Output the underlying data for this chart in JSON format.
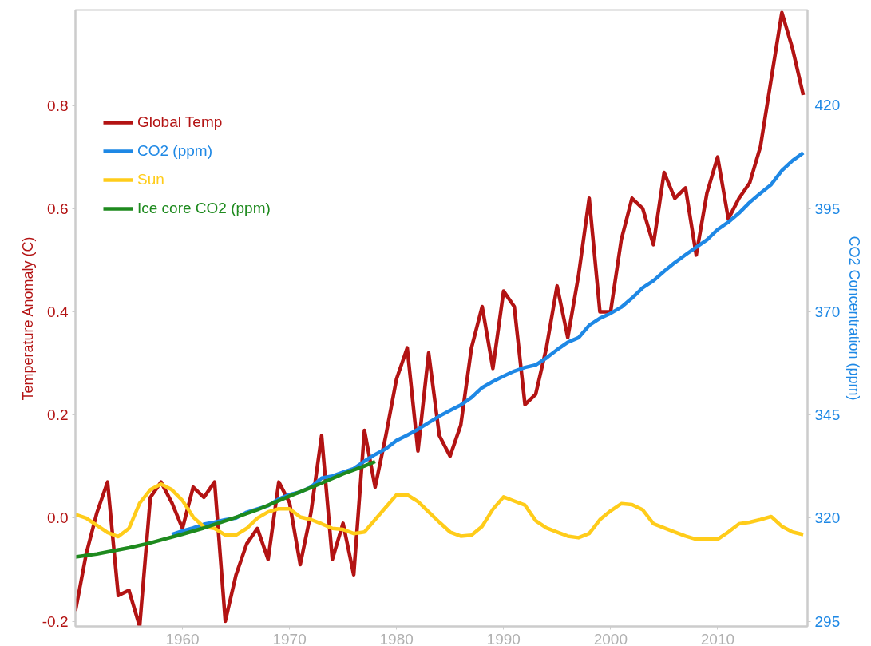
{
  "chart_data": {
    "type": "line",
    "ylabel": "Temperature Anomaly (C)",
    "y2label": "CO2 Concentration (ppm)",
    "xlim": [
      1950,
      2018.4
    ],
    "xticks": [
      1960,
      1970,
      1980,
      1990,
      2000,
      2010
    ],
    "ylim": [
      -0.21,
      0.985
    ],
    "yticks": [
      {
        "value": -0.2,
        "label": "-0.2"
      },
      {
        "value": 0,
        "label": "0.0"
      },
      {
        "value": 0.2,
        "label": "0.2"
      },
      {
        "value": 0.4,
        "label": "0.4"
      },
      {
        "value": 0.6,
        "label": "0.6"
      },
      {
        "value": 0.8,
        "label": "0.8"
      }
    ],
    "y2lim": [
      293.75,
      443.1
    ],
    "y2ticks": [
      295,
      320,
      345,
      370,
      395,
      420
    ],
    "grid": false,
    "legend": "top left",
    "marker": "none",
    "line_style": "solid",
    "series": [
      {
        "name": "Global Temp",
        "color": "#b31313",
        "x": [
          1950,
          1951,
          1952,
          1953,
          1954,
          1955,
          1956,
          1957,
          1958,
          1959,
          1960,
          1961,
          1962,
          1963,
          1964,
          1965,
          1966,
          1967,
          1968,
          1969,
          1970,
          1971,
          1972,
          1973,
          1974,
          1975,
          1976,
          1977,
          1978,
          1979,
          1980,
          1981,
          1982,
          1983,
          1984,
          1985,
          1986,
          1987,
          1988,
          1989,
          1990,
          1991,
          1992,
          1993,
          1994,
          1995,
          1996,
          1997,
          1998,
          1999,
          2000,
          2001,
          2002,
          2003,
          2004,
          2005,
          2006,
          2007,
          2008,
          2009,
          2010,
          2011,
          2012,
          2013,
          2014,
          2015,
          2016,
          2017,
          2018
        ],
        "values": [
          -0.18,
          -0.07,
          0.01,
          0.07,
          -0.15,
          -0.14,
          -0.21,
          0.04,
          0.07,
          0.03,
          -0.02,
          0.06,
          0.04,
          0.07,
          -0.2,
          -0.11,
          -0.05,
          -0.02,
          -0.08,
          0.07,
          0.03,
          -0.09,
          0.01,
          0.16,
          -0.08,
          -0.01,
          -0.11,
          0.17,
          0.06,
          0.16,
          0.27,
          0.33,
          0.13,
          0.32,
          0.16,
          0.12,
          0.18,
          0.33,
          0.41,
          0.29,
          0.44,
          0.41,
          0.22,
          0.24,
          0.33,
          0.45,
          0.35,
          0.47,
          0.62,
          0.4,
          0.4,
          0.54,
          0.62,
          0.6,
          0.53,
          0.67,
          0.62,
          0.64,
          0.51,
          0.63,
          0.7,
          0.58,
          0.62,
          0.65,
          0.72,
          0.85,
          0.98,
          0.91,
          0.82
        ]
      },
      {
        "name": "CO2 (ppm)",
        "color": "#1e88e5",
        "axis": "y2",
        "x": [
          1959,
          1960,
          1961,
          1962,
          1963,
          1964,
          1965,
          1966,
          1967,
          1968,
          1969,
          1970,
          1971,
          1972,
          1973,
          1974,
          1975,
          1976,
          1977,
          1978,
          1979,
          1980,
          1981,
          1982,
          1983,
          1984,
          1985,
          1986,
          1987,
          1988,
          1989,
          1990,
          1991,
          1992,
          1993,
          1994,
          1995,
          1996,
          1997,
          1998,
          1999,
          2000,
          2001,
          2002,
          2003,
          2004,
          2005,
          2006,
          2007,
          2008,
          2009,
          2010,
          2011,
          2012,
          2013,
          2014,
          2015,
          2016,
          2017,
          2018
        ],
        "values": [
          316.0,
          316.9,
          317.6,
          318.5,
          319.0,
          319.6,
          320.0,
          321.4,
          322.2,
          323.0,
          324.6,
          325.7,
          326.3,
          327.5,
          329.7,
          330.2,
          331.1,
          332.0,
          333.8,
          335.4,
          336.8,
          338.8,
          340.1,
          341.5,
          343.1,
          344.7,
          346.1,
          347.4,
          349.2,
          351.6,
          353.1,
          354.4,
          355.6,
          356.5,
          357.1,
          358.8,
          360.8,
          362.6,
          363.7,
          366.7,
          368.4,
          369.6,
          371.1,
          373.3,
          375.8,
          377.5,
          379.8,
          381.9,
          383.8,
          385.6,
          387.4,
          389.9,
          391.7,
          393.9,
          396.5,
          398.7,
          400.8,
          404.2,
          406.6,
          408.5
        ]
      },
      {
        "name": "Sun",
        "color": "#ffcc1a",
        "x": [
          1950,
          1951,
          1952,
          1953,
          1954,
          1955,
          1956,
          1957,
          1958,
          1959,
          1960,
          1961,
          1962,
          1963,
          1964,
          1965,
          1966,
          1967,
          1968,
          1969,
          1970,
          1971,
          1972,
          1973,
          1974,
          1975,
          1976,
          1977,
          1978,
          1979,
          1980,
          1981,
          1982,
          1983,
          1984,
          1985,
          1986,
          1987,
          1988,
          1989,
          1990,
          1991,
          1992,
          1993,
          1994,
          1995,
          1996,
          1997,
          1998,
          1999,
          2000,
          2001,
          2002,
          2003,
          2004,
          2005,
          2006,
          2007,
          2008,
          2009,
          2010,
          2011,
          2012,
          2013,
          2014,
          2015,
          2016,
          2017,
          2018
        ],
        "values": [
          0.007,
          0.0,
          -0.014,
          -0.028,
          -0.036,
          -0.02,
          0.029,
          0.055,
          0.066,
          0.055,
          0.034,
          0.002,
          -0.017,
          -0.02,
          -0.033,
          -0.033,
          -0.02,
          0.0,
          0.012,
          0.018,
          0.018,
          0.002,
          -0.003,
          -0.011,
          -0.02,
          -0.022,
          -0.03,
          -0.027,
          -0.003,
          0.021,
          0.045,
          0.045,
          0.032,
          0.012,
          -0.008,
          -0.027,
          -0.035,
          -0.033,
          -0.016,
          0.017,
          0.041,
          0.033,
          0.025,
          -0.005,
          -0.019,
          -0.027,
          -0.035,
          -0.038,
          -0.03,
          -0.003,
          0.014,
          0.028,
          0.026,
          0.016,
          -0.011,
          -0.019,
          -0.027,
          -0.035,
          -0.041,
          -0.041,
          -0.041,
          -0.027,
          -0.011,
          -0.008,
          -0.003,
          0.003,
          -0.016,
          -0.027,
          -0.032
        ]
      },
      {
        "name": "Ice core CO2 (ppm)",
        "color": "#1e8a1e",
        "axis": "y2",
        "x": [
          1950,
          1952,
          1955,
          1957,
          1960,
          1962,
          1965,
          1967,
          1970,
          1972,
          1975,
          1977,
          1978
        ],
        "values": [
          310.6,
          311.3,
          312.8,
          314.0,
          316.1,
          317.6,
          320.2,
          322.0,
          325.3,
          327.4,
          330.7,
          332.6,
          333.7
        ]
      }
    ]
  }
}
